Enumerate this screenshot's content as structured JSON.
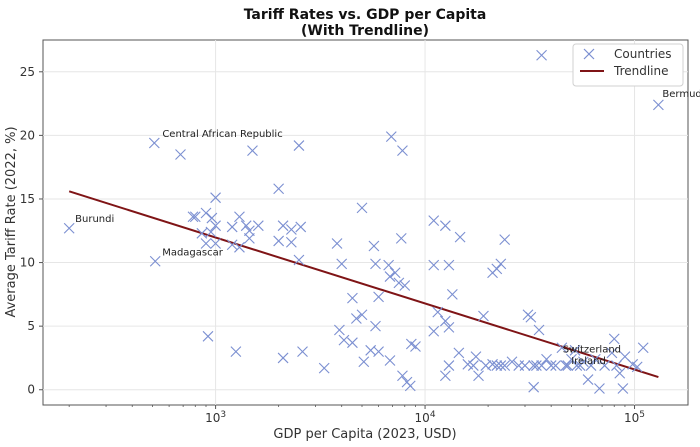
{
  "chart_data": {
    "type": "scatter",
    "title": "Tariff Rates vs. GDP per Capita",
    "subtitle": "(With Trendline)",
    "xlabel": "GDP per Capita (2023, USD)",
    "ylabel": "Average Tariff Rate (2022, %)",
    "x_scale": "log",
    "xlim": [
      150,
      180000
    ],
    "ylim": [
      -1.2,
      27.5
    ],
    "x_ticks": [
      {
        "value": 1000,
        "base": "10",
        "exp": "3"
      },
      {
        "value": 10000,
        "base": "10",
        "exp": "4"
      },
      {
        "value": 100000,
        "base": "10",
        "exp": "5"
      }
    ],
    "y_ticks": [
      0,
      5,
      10,
      15,
      20,
      25
    ],
    "grid": true,
    "legend": {
      "position": "top-right",
      "entries": [
        "Countries",
        "Trendline"
      ]
    },
    "colors": {
      "points": "#7b8fd1",
      "trendline": "#7f1416",
      "grid": "#e6e6e6",
      "axis": "#555555"
    },
    "trendline": {
      "x": [
        200,
        130000
      ],
      "y": [
        15.6,
        1.0
      ]
    },
    "annotations": [
      {
        "text": "Central African Republic",
        "x": 510,
        "y": 19.4
      },
      {
        "text": "Burundi",
        "x": 200,
        "y": 12.7
      },
      {
        "text": "Madagascar",
        "x": 515,
        "y": 10.1
      },
      {
        "text": "Bermuda",
        "x": 130000,
        "y": 22.4
      },
      {
        "text": "Switzerland",
        "x": 98000,
        "y": 2.0
      },
      {
        "text": "Ireland",
        "x": 103000,
        "y": 1.8
      }
    ],
    "series": [
      {
        "name": "Countries",
        "points": [
          [
            200,
            12.7
          ],
          [
            510,
            19.4
          ],
          [
            515,
            10.1
          ],
          [
            680,
            18.5
          ],
          [
            36000,
            26.3
          ],
          [
            130000,
            22.4
          ],
          [
            6900,
            19.9
          ],
          [
            1500,
            18.8
          ],
          [
            2500,
            19.2
          ],
          [
            7800,
            18.8
          ],
          [
            2000,
            15.8
          ],
          [
            1000,
            15.1
          ],
          [
            5000,
            14.3
          ],
          [
            780,
            13.6
          ],
          [
            800,
            13.6
          ],
          [
            900,
            13.9
          ],
          [
            960,
            13.5
          ],
          [
            1000,
            12.9
          ],
          [
            860,
            12.3
          ],
          [
            1200,
            12.8
          ],
          [
            1300,
            13.6
          ],
          [
            1400,
            12.9
          ],
          [
            1450,
            12.5
          ],
          [
            1600,
            12.9
          ],
          [
            2100,
            12.9
          ],
          [
            2300,
            12.6
          ],
          [
            2550,
            12.8
          ],
          [
            2000,
            11.7
          ],
          [
            2300,
            11.6
          ],
          [
            1300,
            11.2
          ],
          [
            1200,
            11.4
          ],
          [
            1450,
            11.9
          ],
          [
            900,
            11.5
          ],
          [
            950,
            12.4
          ],
          [
            1000,
            11.5
          ],
          [
            11000,
            13.3
          ],
          [
            12500,
            12.9
          ],
          [
            14700,
            12.0
          ],
          [
            24000,
            11.8
          ],
          [
            7700,
            11.9
          ],
          [
            3800,
            11.5
          ],
          [
            5700,
            11.3
          ],
          [
            2500,
            10.2
          ],
          [
            4000,
            9.9
          ],
          [
            5800,
            9.9
          ],
          [
            6700,
            9.8
          ],
          [
            6800,
            8.9
          ],
          [
            7200,
            9.2
          ],
          [
            7500,
            8.4
          ],
          [
            8000,
            8.2
          ],
          [
            6000,
            7.3
          ],
          [
            4500,
            7.2
          ],
          [
            11000,
            9.8
          ],
          [
            13000,
            9.8
          ],
          [
            21000,
            9.2
          ],
          [
            22000,
            9.5
          ],
          [
            23000,
            9.9
          ],
          [
            11500,
            6.1
          ],
          [
            13500,
            7.5
          ],
          [
            12500,
            5.4
          ],
          [
            13000,
            4.9
          ],
          [
            19000,
            5.8
          ],
          [
            11000,
            4.6
          ],
          [
            4700,
            5.6
          ],
          [
            5000,
            5.9
          ],
          [
            3900,
            4.7
          ],
          [
            4100,
            3.9
          ],
          [
            4500,
            3.7
          ],
          [
            5800,
            5.0
          ],
          [
            5500,
            3.1
          ],
          [
            6000,
            3.0
          ],
          [
            6800,
            2.3
          ],
          [
            8600,
            3.6
          ],
          [
            9000,
            3.4
          ],
          [
            920,
            4.2
          ],
          [
            1250,
            3.0
          ],
          [
            2100,
            2.5
          ],
          [
            2600,
            3.0
          ],
          [
            3300,
            1.7
          ],
          [
            5100,
            2.2
          ],
          [
            7800,
            1.1
          ],
          [
            8200,
            0.6
          ],
          [
            8500,
            0.3
          ],
          [
            12500,
            1.1
          ],
          [
            13000,
            1.9
          ],
          [
            14500,
            2.9
          ],
          [
            16000,
            2.0
          ],
          [
            17000,
            1.9
          ],
          [
            17500,
            2.6
          ],
          [
            18000,
            1.1
          ],
          [
            19500,
            1.9
          ],
          [
            21000,
            2.0
          ],
          [
            22000,
            1.9
          ],
          [
            23000,
            1.9
          ],
          [
            24000,
            1.9
          ],
          [
            26000,
            2.2
          ],
          [
            28000,
            1.9
          ],
          [
            30000,
            1.9
          ],
          [
            31000,
            5.9
          ],
          [
            32000,
            5.7
          ],
          [
            33000,
            1.9
          ],
          [
            34000,
            1.9
          ],
          [
            35000,
            4.7
          ],
          [
            36000,
            1.9
          ],
          [
            33000,
            0.2
          ],
          [
            38000,
            2.4
          ],
          [
            40000,
            1.9
          ],
          [
            42000,
            1.9
          ],
          [
            45000,
            3.3
          ],
          [
            47000,
            1.9
          ],
          [
            48000,
            1.9
          ],
          [
            50000,
            2.4
          ],
          [
            52000,
            3.1
          ],
          [
            53000,
            1.9
          ],
          [
            55000,
            1.9
          ],
          [
            57000,
            2.2
          ],
          [
            60000,
            0.8
          ],
          [
            62000,
            1.9
          ],
          [
            65000,
            2.4
          ],
          [
            68000,
            0.1
          ],
          [
            72000,
            1.9
          ],
          [
            78000,
            2.9
          ],
          [
            80000,
            4.0
          ],
          [
            82000,
            1.9
          ],
          [
            85000,
            1.3
          ],
          [
            88000,
            0.1
          ],
          [
            98000,
            2.0
          ],
          [
            103000,
            1.8
          ],
          [
            110000,
            3.3
          ],
          [
            90000,
            2.6
          ]
        ]
      }
    ]
  }
}
